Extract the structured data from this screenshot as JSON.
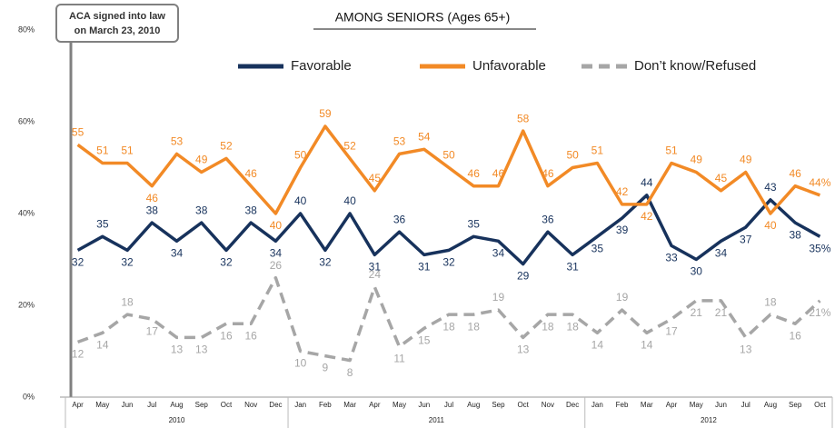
{
  "chart_data": {
    "type": "line",
    "title": "AMONG SENIORS (Ages 65+)",
    "annotation": [
      "ACA signed into law",
      "on March 23, 2010"
    ],
    "categories": [
      "Apr",
      "May",
      "Jun",
      "Jul",
      "Aug",
      "Sep",
      "Oct",
      "Nov",
      "Dec",
      "Jan",
      "Feb",
      "Mar",
      "Apr",
      "May",
      "Jun",
      "Jul",
      "Aug",
      "Sep",
      "Oct",
      "Nov",
      "Dec",
      "Jan",
      "Feb",
      "Mar",
      "Apr",
      "May",
      "Jun",
      "Jul",
      "Aug",
      "Sep",
      "Oct"
    ],
    "year_groups": [
      "2010",
      "2011",
      "2012"
    ],
    "ylim": [
      0,
      80
    ],
    "yticks": [
      {
        "value": 0,
        "label": "0%"
      },
      {
        "value": 20,
        "label": "20%"
      },
      {
        "value": 40,
        "label": "40%"
      },
      {
        "value": 60,
        "label": "60%"
      },
      {
        "value": 80,
        "label": "80%"
      }
    ],
    "series": [
      {
        "name": "Favorable",
        "color": "#17325c",
        "dashed": false,
        "values": [
          32,
          35,
          32,
          38,
          34,
          38,
          32,
          38,
          34,
          40,
          32,
          40,
          31,
          36,
          31,
          32,
          35,
          34,
          29,
          36,
          31,
          35,
          39,
          44,
          33,
          30,
          34,
          37,
          43,
          38,
          35
        ],
        "value_labels": [
          "32",
          "35",
          "32",
          "38",
          "34",
          "38",
          "32",
          "38",
          "34",
          "40",
          "32",
          "40",
          "31",
          "36",
          "31",
          "32",
          "35",
          "34",
          "29",
          "36",
          "31",
          "35",
          "39",
          "44",
          "33",
          "30",
          "34",
          "37",
          "43",
          "38",
          "35%"
        ]
      },
      {
        "name": "Unfavorable",
        "color": "#f28a26",
        "dashed": false,
        "values": [
          55,
          51,
          51,
          46,
          53,
          49,
          52,
          46,
          40,
          50,
          59,
          52,
          45,
          53,
          54,
          50,
          46,
          46,
          58,
          46,
          50,
          51,
          42,
          42,
          51,
          49,
          45,
          49,
          40,
          46,
          44
        ],
        "value_labels": [
          "55",
          "51",
          "51",
          "46",
          "53",
          "49",
          "52",
          "46",
          "40",
          "50",
          "59",
          "52",
          "45",
          "53",
          "54",
          "50",
          "46",
          "46",
          "58",
          "46",
          "50",
          "51",
          "42",
          "42",
          "51",
          "49",
          "45",
          "49",
          "40",
          "46",
          "44%"
        ]
      },
      {
        "name": "Don’t know/Refused",
        "color": "#a6a6a6",
        "dashed": true,
        "values": [
          12,
          14,
          18,
          17,
          13,
          13,
          16,
          16,
          26,
          10,
          9,
          8,
          24,
          11,
          15,
          18,
          18,
          19,
          13,
          18,
          18,
          14,
          19,
          14,
          17,
          21,
          21,
          13,
          18,
          16,
          21
        ],
        "value_labels": [
          "12",
          "14",
          "18",
          "17",
          "13",
          "13",
          "16",
          "16",
          "26",
          "10",
          "9",
          "8",
          "24",
          "11",
          "15",
          "18",
          "18",
          "19",
          "13",
          "18",
          "18",
          "14",
          "19",
          "14",
          "17",
          "21",
          "21",
          "13",
          "18",
          "16",
          "21%"
        ]
      }
    ]
  }
}
